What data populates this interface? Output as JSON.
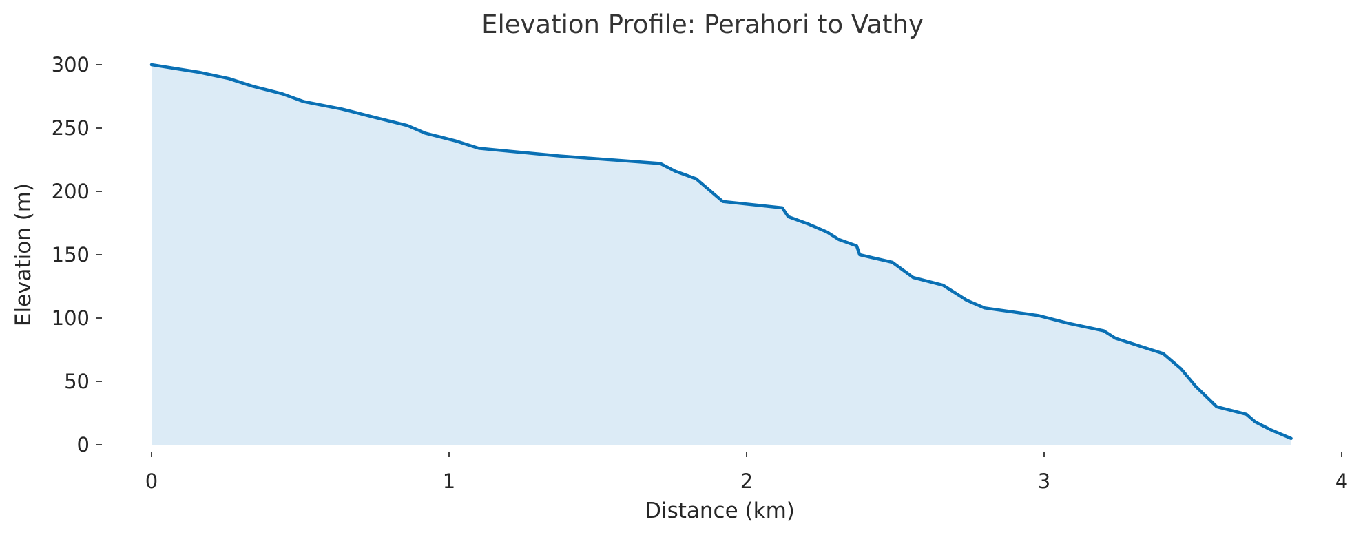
{
  "chart_data": {
    "type": "area",
    "title": "Elevation Profile: Perahori to Vathy",
    "xlabel": "Distance (km)",
    "ylabel": "Elevation (m)",
    "xlim": [
      0,
      4
    ],
    "ylim": [
      0,
      300
    ],
    "xticks": [
      0,
      1,
      2,
      3,
      4
    ],
    "yticks": [
      0,
      50,
      100,
      150,
      200,
      250,
      300
    ],
    "grid": false,
    "series": [
      {
        "name": "Elevation",
        "color": "#0a70b4",
        "fill_color": "#dcebf6",
        "x": [
          0,
          0.16,
          0.26,
          0.34,
          0.44,
          0.51,
          0.64,
          0.74,
          0.86,
          0.92,
          1.02,
          1.1,
          1.37,
          1.71,
          1.76,
          1.83,
          1.86,
          1.89,
          1.92,
          2.12,
          2.14,
          2.21,
          2.27,
          2.31,
          2.37,
          2.38,
          2.49,
          2.56,
          2.66,
          2.7,
          2.74,
          2.8,
          2.98,
          3.08,
          3.2,
          3.24,
          3.32,
          3.4,
          3.43,
          3.46,
          3.51,
          3.58,
          3.68,
          3.71,
          3.76,
          3.83
        ],
        "y": [
          300,
          294,
          289,
          283,
          277,
          271,
          265,
          259,
          252,
          246,
          240,
          234,
          228,
          222,
          216,
          210,
          204,
          198,
          192,
          187,
          180,
          174,
          168,
          162,
          157,
          150,
          144,
          132,
          126,
          120,
          114,
          108,
          102,
          96,
          90,
          84,
          78,
          72,
          66,
          60,
          46,
          30,
          24,
          18,
          12,
          5
        ]
      }
    ]
  }
}
